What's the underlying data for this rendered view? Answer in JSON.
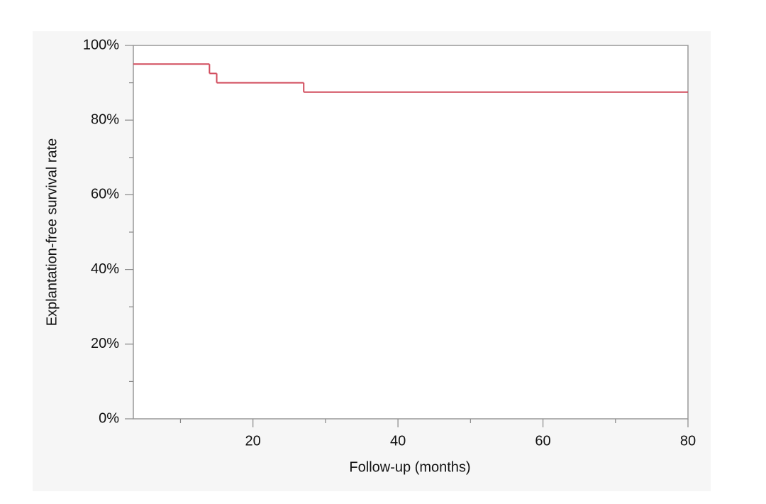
{
  "chart_data": {
    "type": "step",
    "x_label": "Follow-up (months)",
    "y_label": "Explantation-free survival rate",
    "x": [
      0,
      14,
      15,
      27
    ],
    "series": [
      {
        "color": "#d14b5c",
        "values": [
          95,
          92.5,
          90,
          87.5
        ]
      }
    ],
    "xlim": [
      3.5,
      80
    ],
    "xticks": [
      20,
      40,
      60,
      80
    ],
    "xminor_ticks": [
      10,
      30,
      50,
      70
    ],
    "ylim": [
      0,
      100
    ],
    "yticks": [
      {
        "value": 0,
        "label": "0%"
      },
      {
        "value": 20,
        "label": "20%"
      },
      {
        "value": 40,
        "label": "40%"
      },
      {
        "value": 60,
        "label": "60%"
      },
      {
        "value": 80,
        "label": "80%"
      },
      {
        "value": 100,
        "label": "100%"
      }
    ],
    "yminor_ticks": [
      10,
      30,
      50,
      70,
      90
    ]
  }
}
